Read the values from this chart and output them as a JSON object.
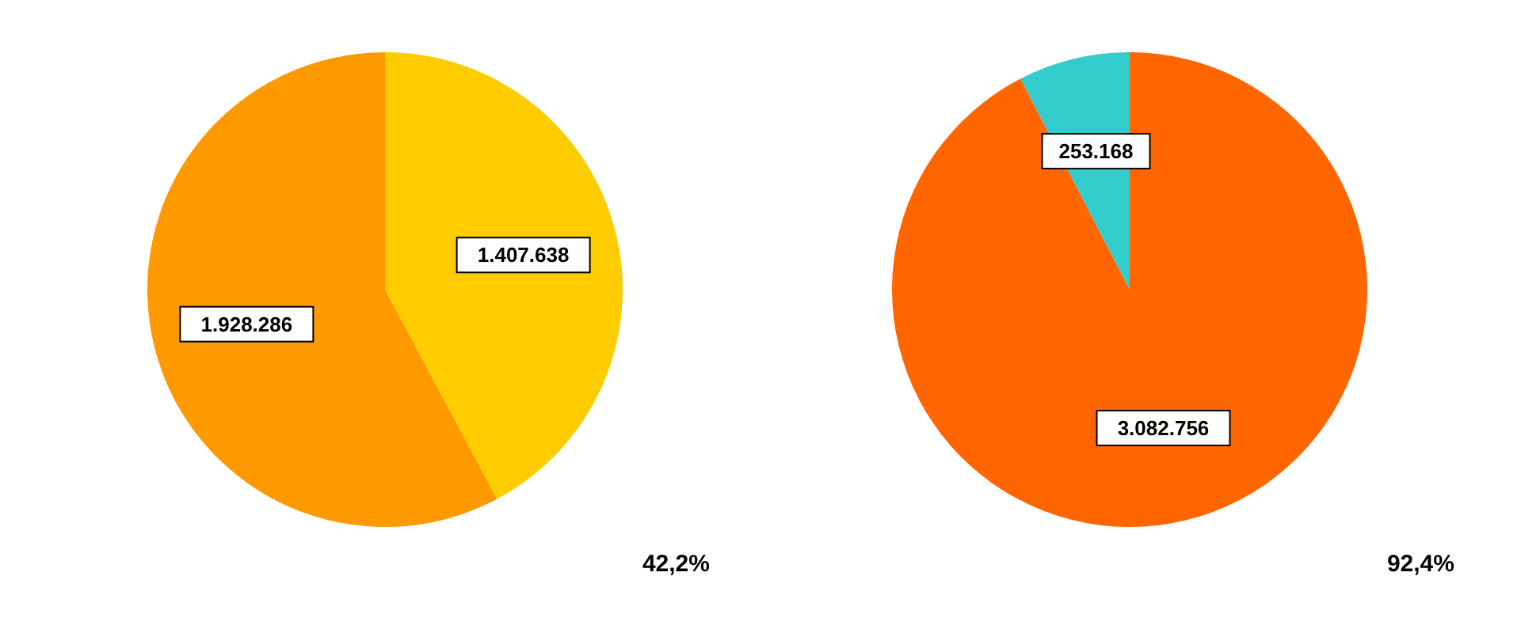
{
  "chart_data": [
    {
      "type": "pie",
      "categories": [
        null,
        null
      ],
      "values": [
        1407638,
        1928286
      ],
      "colors": [
        "#ffcc00",
        "#ff9900"
      ],
      "value_labels": [
        "1.407.638",
        "1.928.286"
      ],
      "annotations": [
        "42,2%"
      ]
    },
    {
      "type": "pie",
      "categories": [
        null,
        null
      ],
      "values": [
        3082756,
        253168
      ],
      "colors": [
        "#ff6600",
        "#33cccc"
      ],
      "value_labels": [
        "3.082.756",
        "253.168"
      ],
      "annotations": [
        "92,4%"
      ]
    }
  ]
}
